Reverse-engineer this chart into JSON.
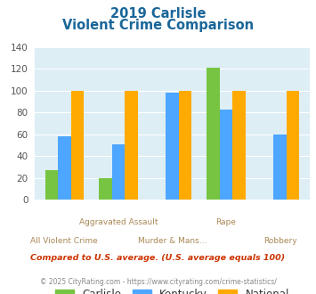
{
  "title_line1": "2019 Carlisle",
  "title_line2": "Violent Crime Comparison",
  "categories": [
    "All Violent Crime",
    "Aggravated Assault",
    "Murder & Mans...",
    "Rape",
    "Robbery"
  ],
  "series": {
    "Carlisle": [
      27,
      20,
      0,
      121,
      0
    ],
    "Kentucky": [
      58,
      51,
      98,
      83,
      60
    ],
    "National": [
      100,
      100,
      100,
      100,
      100
    ]
  },
  "colors": {
    "Carlisle": "#76c442",
    "Kentucky": "#4da6ff",
    "National": "#ffaa00"
  },
  "ylim": [
    0,
    140
  ],
  "yticks": [
    0,
    20,
    40,
    60,
    80,
    100,
    120,
    140
  ],
  "background_color": "#ddeef5",
  "title_color": "#1a6699",
  "axis_label_color": "#aa8855",
  "legend_color": "#333333",
  "footnote1": "Compared to U.S. average. (U.S. average equals 100)",
  "footnote2": "© 2025 CityRating.com - https://www.cityrating.com/crime-statistics/",
  "footnote1_color": "#cc3300",
  "footnote2_color": "#888888",
  "top_row_labels": [
    [
      1,
      "Aggravated Assault"
    ],
    [
      3,
      "Rape"
    ]
  ],
  "bottom_row_labels": [
    [
      0,
      "All Violent Crime"
    ],
    [
      2,
      "Murder & Mans..."
    ],
    [
      4,
      "Robbery"
    ]
  ]
}
